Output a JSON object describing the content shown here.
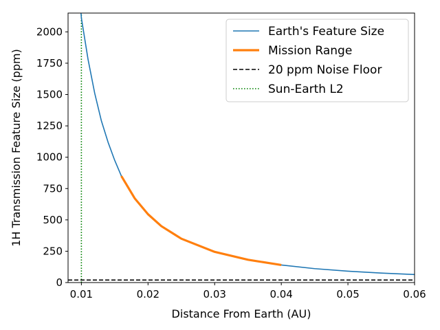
{
  "chart_data": {
    "type": "line",
    "xlabel": "Distance From Earth (AU)",
    "ylabel": "1H Transmission Feature Size (ppm)",
    "xlim": [
      0.008,
      0.06
    ],
    "ylim": [
      0,
      2150
    ],
    "x_ticks": [
      0.01,
      0.02,
      0.03,
      0.04,
      0.05,
      0.06
    ],
    "x_tick_labels": [
      "0.01",
      "0.02",
      "0.03",
      "0.04",
      "0.05",
      "0.06"
    ],
    "y_ticks": [
      0,
      250,
      500,
      750,
      1000,
      1250,
      1500,
      1750,
      2000
    ],
    "y_tick_labels": [
      "0",
      "250",
      "500",
      "750",
      "1000",
      "1250",
      "1500",
      "1750",
      "2000"
    ],
    "grid": false,
    "legend_position": "top-right",
    "legend": [
      "Earth's Feature Size",
      "Mission Range",
      "20 ppm Noise Floor",
      "Sun-Earth L2"
    ],
    "series": [
      {
        "name": "Earth's Feature Size",
        "color": "#1f77b4",
        "style": "solid",
        "x": [
          0.0099,
          0.01,
          0.011,
          0.012,
          0.013,
          0.014,
          0.015,
          0.016,
          0.018,
          0.02,
          0.022,
          0.025,
          0.03,
          0.035,
          0.04,
          0.045,
          0.05,
          0.055,
          0.06
        ],
        "y": [
          2180,
          2110,
          1780,
          1510,
          1290,
          1120,
          975,
          850,
          672,
          545,
          450,
          350,
          245,
          182,
          140,
          111,
          91,
          76,
          64
        ]
      },
      {
        "name": "Mission Range",
        "color": "#ff7f0e",
        "style": "solid-thick",
        "x": [
          0.016,
          0.018,
          0.02,
          0.022,
          0.025,
          0.03,
          0.035,
          0.04
        ],
        "y": [
          850,
          672,
          545,
          450,
          350,
          245,
          182,
          140
        ]
      },
      {
        "name": "20 ppm Noise Floor",
        "color": "#000000",
        "style": "dashed",
        "x": [
          0.008,
          0.06
        ],
        "y": [
          20,
          20
        ]
      },
      {
        "name": "Sun-Earth L2",
        "color": "#008000",
        "style": "dotted",
        "x": [
          0.01,
          0.01
        ],
        "y": [
          0,
          2150
        ]
      }
    ]
  }
}
